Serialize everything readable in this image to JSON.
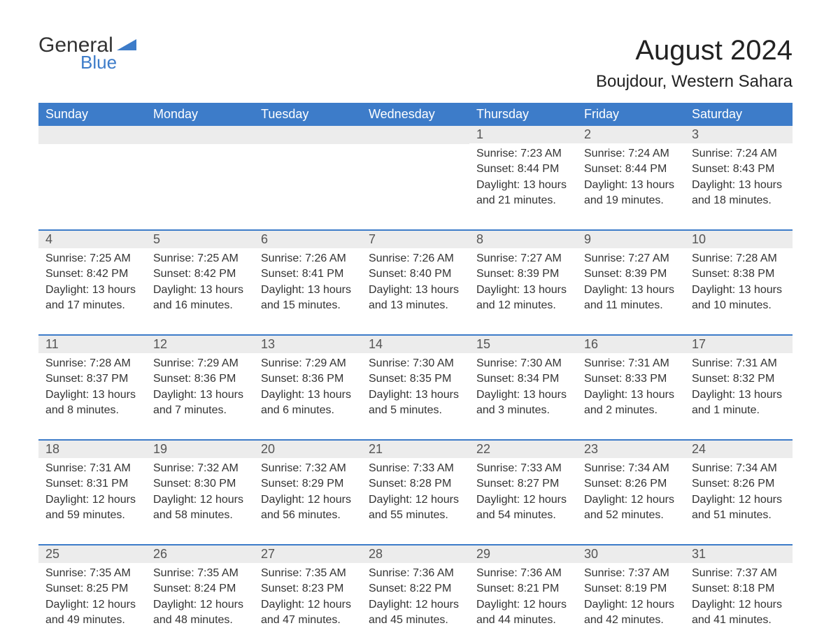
{
  "brand": {
    "name_part1": "General",
    "name_part2": "Blue",
    "logo_color": "#3d7cc9"
  },
  "header": {
    "month_title": "August 2024",
    "location": "Boujdour, Western Sahara"
  },
  "style": {
    "header_bg": "#3d7cc9",
    "header_text": "#ffffff",
    "daybar_bg": "#ececec",
    "row_border": "#3d7cc9",
    "text_color": "#333333",
    "body_font_size": 16,
    "title_font_size": 40,
    "location_font_size": 24,
    "weekday_font_size": 18
  },
  "weekdays": [
    "Sunday",
    "Monday",
    "Tuesday",
    "Wednesday",
    "Thursday",
    "Friday",
    "Saturday"
  ],
  "weeks": [
    [
      null,
      null,
      null,
      null,
      {
        "day": "1",
        "sunrise": "Sunrise: 7:23 AM",
        "sunset": "Sunset: 8:44 PM",
        "daylight1": "Daylight: 13 hours",
        "daylight2": "and 21 minutes."
      },
      {
        "day": "2",
        "sunrise": "Sunrise: 7:24 AM",
        "sunset": "Sunset: 8:44 PM",
        "daylight1": "Daylight: 13 hours",
        "daylight2": "and 19 minutes."
      },
      {
        "day": "3",
        "sunrise": "Sunrise: 7:24 AM",
        "sunset": "Sunset: 8:43 PM",
        "daylight1": "Daylight: 13 hours",
        "daylight2": "and 18 minutes."
      }
    ],
    [
      {
        "day": "4",
        "sunrise": "Sunrise: 7:25 AM",
        "sunset": "Sunset: 8:42 PM",
        "daylight1": "Daylight: 13 hours",
        "daylight2": "and 17 minutes."
      },
      {
        "day": "5",
        "sunrise": "Sunrise: 7:25 AM",
        "sunset": "Sunset: 8:42 PM",
        "daylight1": "Daylight: 13 hours",
        "daylight2": "and 16 minutes."
      },
      {
        "day": "6",
        "sunrise": "Sunrise: 7:26 AM",
        "sunset": "Sunset: 8:41 PM",
        "daylight1": "Daylight: 13 hours",
        "daylight2": "and 15 minutes."
      },
      {
        "day": "7",
        "sunrise": "Sunrise: 7:26 AM",
        "sunset": "Sunset: 8:40 PM",
        "daylight1": "Daylight: 13 hours",
        "daylight2": "and 13 minutes."
      },
      {
        "day": "8",
        "sunrise": "Sunrise: 7:27 AM",
        "sunset": "Sunset: 8:39 PM",
        "daylight1": "Daylight: 13 hours",
        "daylight2": "and 12 minutes."
      },
      {
        "day": "9",
        "sunrise": "Sunrise: 7:27 AM",
        "sunset": "Sunset: 8:39 PM",
        "daylight1": "Daylight: 13 hours",
        "daylight2": "and 11 minutes."
      },
      {
        "day": "10",
        "sunrise": "Sunrise: 7:28 AM",
        "sunset": "Sunset: 8:38 PM",
        "daylight1": "Daylight: 13 hours",
        "daylight2": "and 10 minutes."
      }
    ],
    [
      {
        "day": "11",
        "sunrise": "Sunrise: 7:28 AM",
        "sunset": "Sunset: 8:37 PM",
        "daylight1": "Daylight: 13 hours",
        "daylight2": "and 8 minutes."
      },
      {
        "day": "12",
        "sunrise": "Sunrise: 7:29 AM",
        "sunset": "Sunset: 8:36 PM",
        "daylight1": "Daylight: 13 hours",
        "daylight2": "and 7 minutes."
      },
      {
        "day": "13",
        "sunrise": "Sunrise: 7:29 AM",
        "sunset": "Sunset: 8:36 PM",
        "daylight1": "Daylight: 13 hours",
        "daylight2": "and 6 minutes."
      },
      {
        "day": "14",
        "sunrise": "Sunrise: 7:30 AM",
        "sunset": "Sunset: 8:35 PM",
        "daylight1": "Daylight: 13 hours",
        "daylight2": "and 5 minutes."
      },
      {
        "day": "15",
        "sunrise": "Sunrise: 7:30 AM",
        "sunset": "Sunset: 8:34 PM",
        "daylight1": "Daylight: 13 hours",
        "daylight2": "and 3 minutes."
      },
      {
        "day": "16",
        "sunrise": "Sunrise: 7:31 AM",
        "sunset": "Sunset: 8:33 PM",
        "daylight1": "Daylight: 13 hours",
        "daylight2": "and 2 minutes."
      },
      {
        "day": "17",
        "sunrise": "Sunrise: 7:31 AM",
        "sunset": "Sunset: 8:32 PM",
        "daylight1": "Daylight: 13 hours",
        "daylight2": "and 1 minute."
      }
    ],
    [
      {
        "day": "18",
        "sunrise": "Sunrise: 7:31 AM",
        "sunset": "Sunset: 8:31 PM",
        "daylight1": "Daylight: 12 hours",
        "daylight2": "and 59 minutes."
      },
      {
        "day": "19",
        "sunrise": "Sunrise: 7:32 AM",
        "sunset": "Sunset: 8:30 PM",
        "daylight1": "Daylight: 12 hours",
        "daylight2": "and 58 minutes."
      },
      {
        "day": "20",
        "sunrise": "Sunrise: 7:32 AM",
        "sunset": "Sunset: 8:29 PM",
        "daylight1": "Daylight: 12 hours",
        "daylight2": "and 56 minutes."
      },
      {
        "day": "21",
        "sunrise": "Sunrise: 7:33 AM",
        "sunset": "Sunset: 8:28 PM",
        "daylight1": "Daylight: 12 hours",
        "daylight2": "and 55 minutes."
      },
      {
        "day": "22",
        "sunrise": "Sunrise: 7:33 AM",
        "sunset": "Sunset: 8:27 PM",
        "daylight1": "Daylight: 12 hours",
        "daylight2": "and 54 minutes."
      },
      {
        "day": "23",
        "sunrise": "Sunrise: 7:34 AM",
        "sunset": "Sunset: 8:26 PM",
        "daylight1": "Daylight: 12 hours",
        "daylight2": "and 52 minutes."
      },
      {
        "day": "24",
        "sunrise": "Sunrise: 7:34 AM",
        "sunset": "Sunset: 8:26 PM",
        "daylight1": "Daylight: 12 hours",
        "daylight2": "and 51 minutes."
      }
    ],
    [
      {
        "day": "25",
        "sunrise": "Sunrise: 7:35 AM",
        "sunset": "Sunset: 8:25 PM",
        "daylight1": "Daylight: 12 hours",
        "daylight2": "and 49 minutes."
      },
      {
        "day": "26",
        "sunrise": "Sunrise: 7:35 AM",
        "sunset": "Sunset: 8:24 PM",
        "daylight1": "Daylight: 12 hours",
        "daylight2": "and 48 minutes."
      },
      {
        "day": "27",
        "sunrise": "Sunrise: 7:35 AM",
        "sunset": "Sunset: 8:23 PM",
        "daylight1": "Daylight: 12 hours",
        "daylight2": "and 47 minutes."
      },
      {
        "day": "28",
        "sunrise": "Sunrise: 7:36 AM",
        "sunset": "Sunset: 8:22 PM",
        "daylight1": "Daylight: 12 hours",
        "daylight2": "and 45 minutes."
      },
      {
        "day": "29",
        "sunrise": "Sunrise: 7:36 AM",
        "sunset": "Sunset: 8:21 PM",
        "daylight1": "Daylight: 12 hours",
        "daylight2": "and 44 minutes."
      },
      {
        "day": "30",
        "sunrise": "Sunrise: 7:37 AM",
        "sunset": "Sunset: 8:19 PM",
        "daylight1": "Daylight: 12 hours",
        "daylight2": "and 42 minutes."
      },
      {
        "day": "31",
        "sunrise": "Sunrise: 7:37 AM",
        "sunset": "Sunset: 8:18 PM",
        "daylight1": "Daylight: 12 hours",
        "daylight2": "and 41 minutes."
      }
    ]
  ]
}
